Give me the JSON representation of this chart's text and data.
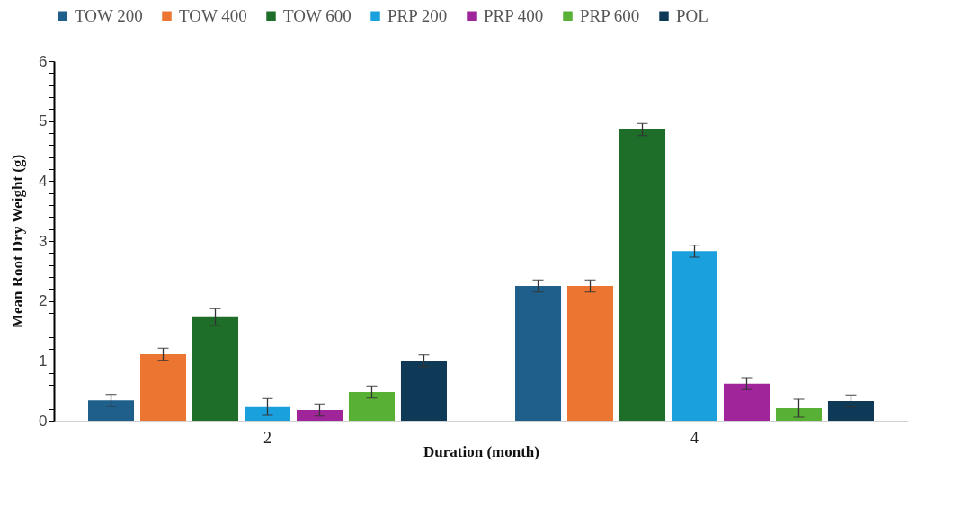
{
  "chart_data": {
    "type": "bar",
    "xlabel": "Duration (month)",
    "ylabel": "Mean Root Dry Weight (g)",
    "categories": [
      "2",
      "4"
    ],
    "series": [
      {
        "name": "TOW 200",
        "color": "#1f5f8b",
        "values": [
          0.34,
          2.25
        ],
        "errors": [
          0.1,
          0.1
        ]
      },
      {
        "name": "TOW 400",
        "color": "#ed7532",
        "values": [
          1.11,
          2.25
        ],
        "errors": [
          0.1,
          0.1
        ]
      },
      {
        "name": "TOW 600",
        "color": "#1e6e2a",
        "values": [
          1.73,
          4.86
        ],
        "errors": [
          0.14,
          0.1
        ]
      },
      {
        "name": "PRP 200",
        "color": "#1aa0dc",
        "values": [
          0.23,
          2.83
        ],
        "errors": [
          0.14,
          0.1
        ]
      },
      {
        "name": "PRP 400",
        "color": "#a0259a",
        "values": [
          0.18,
          0.62
        ],
        "errors": [
          0.1,
          0.1
        ]
      },
      {
        "name": "PRP 600",
        "color": "#58b034",
        "values": [
          0.48,
          0.21
        ],
        "errors": [
          0.1,
          0.15
        ]
      },
      {
        "name": "POL",
        "color": "#0f3a57",
        "values": [
          1.0,
          0.33
        ],
        "errors": [
          0.1,
          0.1
        ]
      }
    ],
    "ylim": [
      0,
      6
    ],
    "yticks": [
      0,
      {
        "value": 0.2,
        "label": null
      },
      {
        "value": 0.4,
        "label": null
      },
      {
        "value": 0.6,
        "label": null
      },
      {
        "value": 0.8,
        "label": null
      },
      1,
      {
        "value": 1.2,
        "label": null
      },
      {
        "value": 1.4,
        "label": null
      },
      {
        "value": 1.6,
        "label": null
      },
      {
        "value": 1.8,
        "label": null
      },
      2,
      {
        "value": 2.2,
        "label": null
      },
      {
        "value": 2.4,
        "label": null
      },
      {
        "value": 2.6,
        "label": null
      },
      {
        "value": 2.8,
        "label": null
      },
      3,
      {
        "value": 3.2,
        "label": null
      },
      {
        "value": 3.4,
        "label": null
      },
      {
        "value": 3.6,
        "label": null
      },
      {
        "value": 3.8,
        "label": null
      },
      4,
      {
        "value": 4.2,
        "label": null
      },
      {
        "value": 4.4,
        "label": null
      },
      {
        "value": 4.6,
        "label": null
      },
      {
        "value": 4.8,
        "label": null
      },
      5,
      {
        "value": 5.2,
        "label": null
      },
      {
        "value": 5.4,
        "label": null
      },
      {
        "value": 5.6,
        "label": null
      },
      {
        "value": 5.8,
        "label": null
      },
      6
    ],
    "grid": false,
    "legend": "top"
  }
}
